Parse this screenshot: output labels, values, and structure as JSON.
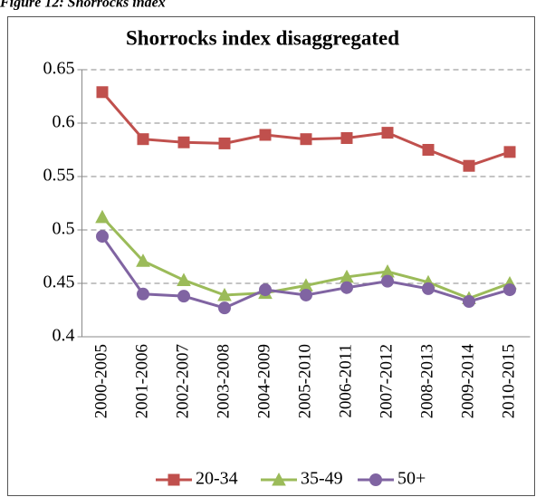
{
  "caption": "Figure 12: Shorrocks index",
  "chart_data": {
    "type": "line",
    "title": "Shorrocks index disaggregated",
    "categories": [
      "2000-2005",
      "2001-2006",
      "2002-2007",
      "2003-2008",
      "2004-2009",
      "2005-2010",
      "2006-2011",
      "2007-2012",
      "2008-2013",
      "2009-2014",
      "2010-2015"
    ],
    "series": [
      {
        "name": "20-34",
        "color": "#c0504d",
        "marker": "square",
        "values": [
          0.629,
          0.585,
          0.582,
          0.581,
          0.589,
          0.585,
          0.586,
          0.591,
          0.575,
          0.56,
          0.573
        ]
      },
      {
        "name": "35-49",
        "color": "#9bbb59",
        "marker": "triangle",
        "values": [
          0.512,
          0.471,
          0.453,
          0.439,
          0.441,
          0.448,
          0.456,
          0.461,
          0.451,
          0.436,
          0.45
        ]
      },
      {
        "name": "50+",
        "color": "#8064a2",
        "marker": "circle",
        "values": [
          0.494,
          0.44,
          0.438,
          0.427,
          0.444,
          0.439,
          0.446,
          0.452,
          0.445,
          0.433,
          0.444
        ]
      }
    ],
    "ylim": [
      0.4,
      0.65
    ],
    "yticks": [
      0.4,
      0.45,
      0.5,
      0.55,
      0.6,
      0.65
    ],
    "grid": true,
    "legend": "bottom"
  }
}
